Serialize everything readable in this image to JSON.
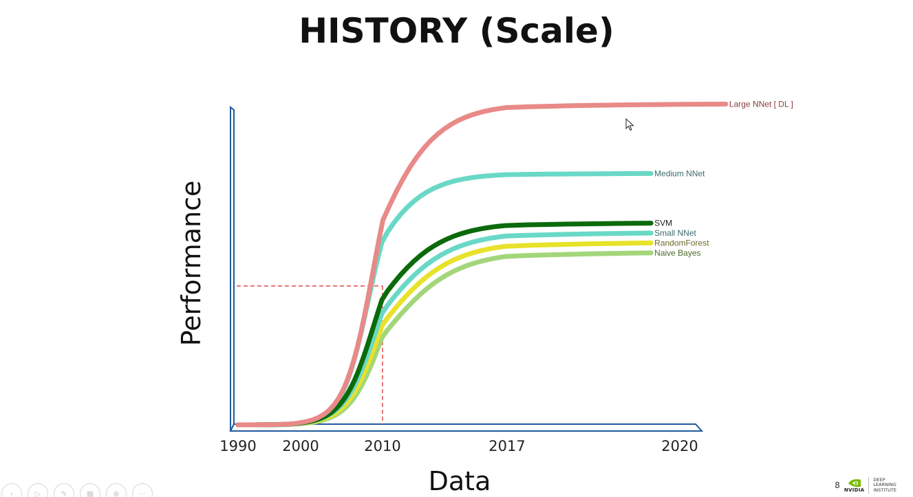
{
  "slide": {
    "title": "HISTORY (Scale)",
    "page_number": "8"
  },
  "brand": {
    "logo_word": "NVIDIA",
    "logo_lines": [
      "DEEP",
      "LEARNING",
      "INSTITUTE"
    ],
    "logo_color": "#76b900"
  },
  "toolbar": {
    "buttons": [
      {
        "name": "previous-slide",
        "glyph": "‹"
      },
      {
        "name": "next-slide",
        "glyph": "▷"
      },
      {
        "name": "pen",
        "glyph": "✎"
      },
      {
        "name": "slides-view",
        "glyph": "▦"
      },
      {
        "name": "zoom",
        "glyph": "⊕"
      },
      {
        "name": "more-options",
        "glyph": "···"
      }
    ]
  },
  "chart_data": {
    "type": "line",
    "title": "",
    "xlabel": "Data",
    "ylabel": "Performance",
    "x_ticks": [
      "1990",
      "2000",
      "2010",
      "2017",
      "2020"
    ],
    "grid": false,
    "legend": "inline-right",
    "colors": {
      "axis": "#1f5a9e",
      "guide": "#e02020"
    },
    "guide_lines": {
      "x": 2010,
      "y": 0.42
    },
    "series": [
      {
        "name": "Large NNet [ DL ]",
        "color": "#e88a88",
        "label_color": "#8b3a3a",
        "x_end": 2020.8,
        "y_end": 0.97,
        "midpoint": 2009.0,
        "steepness": 0.55
      },
      {
        "name": "Medium NNet",
        "color": "#6ad8c6",
        "label_color": "#3b6b6b",
        "x_end": 2019.5,
        "y_end": 0.76,
        "midpoint": 2008.3,
        "steepness": 0.6
      },
      {
        "name": "SVM",
        "color": "#0b6a0b",
        "label_color": "#1a1a1a",
        "x_end": 2019.5,
        "y_end": 0.61,
        "midpoint": 2009.0,
        "steepness": 0.52
      },
      {
        "name": "Small NNet",
        "color": "#6ad8c6",
        "label_color": "#3b6b6b",
        "x_end": 2019.5,
        "y_end": 0.58,
        "midpoint": 2009.3,
        "steepness": 0.5
      },
      {
        "name": "RandomForest",
        "color": "#e8e22a",
        "label_color": "#6b6b2a",
        "x_end": 2019.5,
        "y_end": 0.55,
        "midpoint": 2009.6,
        "steepness": 0.5
      },
      {
        "name": "Naive Bayes",
        "color": "#a3d67a",
        "label_color": "#4b6b2a",
        "x_end": 2019.5,
        "y_end": 0.52,
        "midpoint": 2009.9,
        "steepness": 0.5
      }
    ]
  }
}
